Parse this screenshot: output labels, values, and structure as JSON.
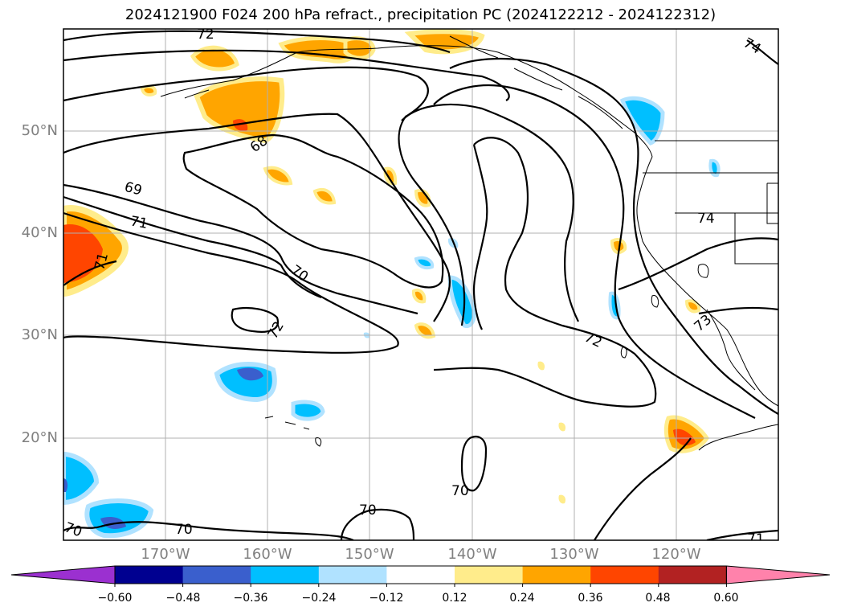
{
  "title": "2024121900 F024 200 hPa refract., precipitation PC (2024122212 - 2024122312)",
  "map": {
    "lat_ticks": [
      "50°N",
      "40°N",
      "30°N",
      "20°N"
    ],
    "lon_ticks": [
      "170°W",
      "160°W",
      "150°W",
      "140°W",
      "130°W",
      "120°W"
    ],
    "contour_labels": [
      "72",
      "74",
      "68",
      "69",
      "71",
      "71",
      "70",
      "72",
      "72",
      "74",
      "73",
      "70",
      "70",
      "70",
      "70",
      "71"
    ],
    "colors": {
      "grid": "#b0b0b0",
      "contour": "#000000"
    }
  },
  "colorbar": {
    "colors": [
      "#9b30d0",
      "#000090",
      "#3a5fcd",
      "#00bfff",
      "#b0e2ff",
      "#ffffff",
      "#ffec8b",
      "#ffa500",
      "#ff4500",
      "#b22222",
      "#ff82ab"
    ],
    "labels": [
      "−0.60",
      "−0.48",
      "−0.36",
      "−0.24",
      "−0.12",
      "0.12",
      "0.24",
      "0.36",
      "0.48",
      "0.60"
    ]
  }
}
